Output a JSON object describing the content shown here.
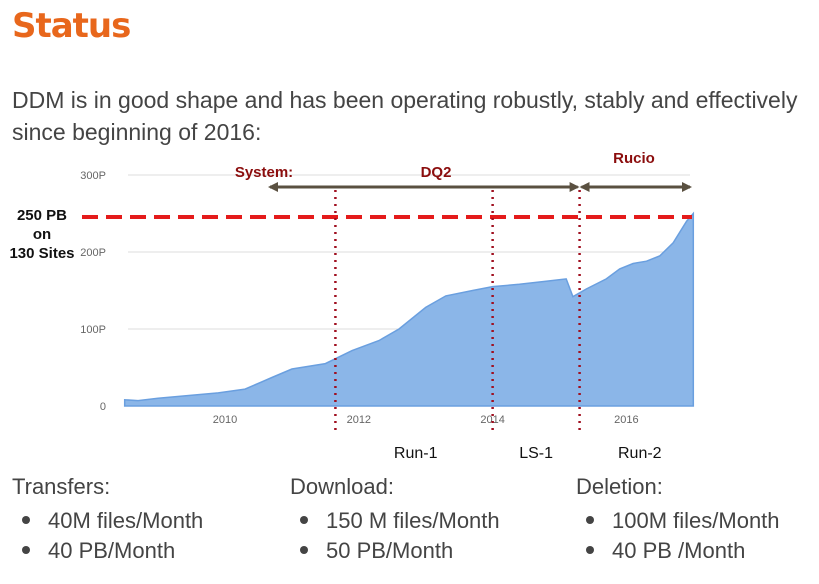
{
  "title": "Status",
  "intro": "DDM is in good shape and has been operating robustly, stably and effectively since beginning of 2016:",
  "colors": {
    "title": "#e8671c",
    "area": "#8bb6e8",
    "area_line": "#6a9fdf",
    "dashed": "#e41b1b",
    "dotted": "#a01020",
    "label_red": "#8b0d0d",
    "arrow": "#5a5040"
  },
  "chart_data": {
    "type": "area",
    "ylim": [
      0,
      300
    ],
    "xlim": [
      2008.4,
      2017.1
    ],
    "yticks": [
      "0",
      "100P",
      "200P",
      "300P"
    ],
    "xticks": [
      "2010",
      "2012",
      "2014",
      "2016"
    ],
    "grid": true,
    "series": [
      {
        "x": [
          2008.5,
          2008.7,
          2009.0,
          2009.5,
          2009.9,
          2010.3,
          2010.7,
          2011.0,
          2011.5,
          2011.9,
          2012.3,
          2012.6,
          2013.0,
          2013.3,
          2013.7,
          2014.0,
          2014.4,
          2014.8,
          2015.1,
          2015.2,
          2015.4,
          2015.7,
          2015.9,
          2016.1,
          2016.3,
          2016.5,
          2016.7,
          2016.9,
          2017.0
        ],
        "y": [
          8,
          7,
          10,
          14,
          17,
          22,
          37,
          48,
          55,
          72,
          85,
          100,
          128,
          143,
          150,
          155,
          158,
          162,
          165,
          142,
          152,
          165,
          178,
          185,
          188,
          195,
          212,
          240,
          250
        ]
      }
    ],
    "reference_line": {
      "y": 250,
      "label_lines": [
        "250 PB",
        "on",
        "130 Sites"
      ]
    },
    "vertical_markers": [
      2011.65,
      2014.0,
      2015.3
    ],
    "system_label": "System:",
    "periods": [
      {
        "label": "DQ2",
        "from": 2009.9,
        "to": 2015.3
      },
      {
        "label": "Rucio",
        "from": 2015.3,
        "to": 2017.1
      }
    ],
    "runs": [
      {
        "label": "Run-1",
        "x": 2012.85
      },
      {
        "label": "LS-1",
        "x": 2014.65
      },
      {
        "label": "Run-2",
        "x": 2016.2
      }
    ]
  },
  "stats": [
    {
      "heading": "Transfers:",
      "items": [
        "40M files/Month",
        "40 PB/Month"
      ]
    },
    {
      "heading": "Download:",
      "items": [
        "150 M files/Month",
        "50 PB/Month"
      ]
    },
    {
      "heading": "Deletion:",
      "items": [
        "100M files/Month",
        "40 PB /Month"
      ]
    }
  ]
}
